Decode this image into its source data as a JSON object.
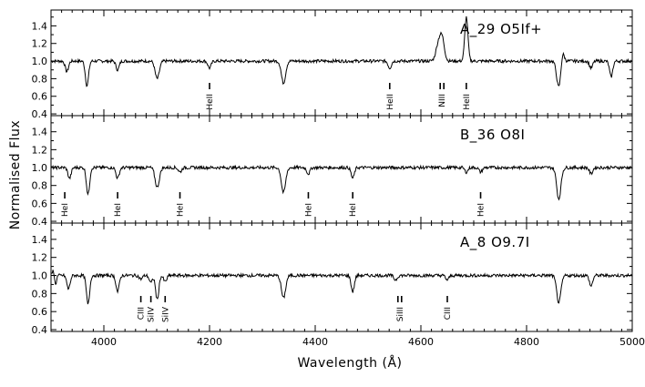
{
  "chart_data": {
    "type": "line",
    "xlabel": "Wavelength (Å)",
    "ylabel": "Normalised Flux",
    "xlim": [
      3900,
      5000
    ],
    "x_ticks": [
      "4000",
      "4200",
      "4400",
      "4600",
      "4800",
      "5000"
    ],
    "y_ticks": [
      "0.4",
      "0.6",
      "0.8",
      "1.0",
      "1.2",
      "1.4"
    ],
    "panels": [
      {
        "label": "A_29  O5If+",
        "ylim": [
          0.38,
          1.58
        ],
        "features": [
          {
            "x": 3930,
            "type": "abs",
            "depth": 0.12,
            "width": 3
          },
          {
            "x": 3968,
            "type": "abs",
            "depth": 0.28,
            "width": 3
          },
          {
            "x": 4026,
            "type": "abs",
            "depth": 0.1,
            "width": 3
          },
          {
            "x": 4101,
            "type": "abs",
            "depth": 0.2,
            "width": 4
          },
          {
            "x": 4200,
            "type": "abs",
            "depth": 0.08,
            "width": 3
          },
          {
            "x": 4340,
            "type": "abs",
            "depth": 0.25,
            "width": 4
          },
          {
            "x": 4541,
            "type": "abs",
            "depth": 0.08,
            "width": 3
          },
          {
            "x": 4634,
            "type": "em",
            "depth": 0.22,
            "width": 5
          },
          {
            "x": 4641,
            "type": "em",
            "depth": 0.2,
            "width": 4
          },
          {
            "x": 4686,
            "type": "em",
            "depth": 0.5,
            "width": 3
          },
          {
            "x": 4861,
            "type": "abs",
            "depth": 0.3,
            "width": 4
          },
          {
            "x": 4868,
            "type": "em",
            "depth": 0.12,
            "width": 3
          },
          {
            "x": 4922,
            "type": "abs",
            "depth": 0.08,
            "width": 3
          },
          {
            "x": 4960,
            "type": "abs",
            "depth": 0.18,
            "width": 3
          }
        ],
        "line_ids": [
          {
            "x": 4200,
            "labels": [
              "HeII"
            ]
          },
          {
            "x": 4541,
            "labels": [
              "HeII"
            ]
          },
          {
            "x": 4640,
            "labels": [
              "NIII"
            ],
            "double": true
          },
          {
            "x": 4686,
            "labels": [
              "HeII"
            ]
          }
        ]
      },
      {
        "label": "B_36  O8I",
        "ylim": [
          0.38,
          1.58
        ],
        "features": [
          {
            "x": 3935,
            "type": "abs",
            "depth": 0.12,
            "width": 3
          },
          {
            "x": 3970,
            "type": "abs",
            "depth": 0.3,
            "width": 3
          },
          {
            "x": 4026,
            "type": "abs",
            "depth": 0.12,
            "width": 3
          },
          {
            "x": 4101,
            "type": "abs",
            "depth": 0.22,
            "width": 4
          },
          {
            "x": 4144,
            "type": "abs",
            "depth": 0.05,
            "width": 3
          },
          {
            "x": 4340,
            "type": "abs",
            "depth": 0.28,
            "width": 4
          },
          {
            "x": 4387,
            "type": "abs",
            "depth": 0.07,
            "width": 3
          },
          {
            "x": 4471,
            "type": "abs",
            "depth": 0.12,
            "width": 3
          },
          {
            "x": 4686,
            "type": "abs",
            "depth": 0.05,
            "width": 3
          },
          {
            "x": 4713,
            "type": "abs",
            "depth": 0.05,
            "width": 3
          },
          {
            "x": 4861,
            "type": "abs",
            "depth": 0.35,
            "width": 4
          },
          {
            "x": 4922,
            "type": "abs",
            "depth": 0.07,
            "width": 3
          }
        ],
        "line_ids": [
          {
            "x": 3926,
            "labels": [
              "HeI"
            ]
          },
          {
            "x": 4026,
            "labels": [
              "HeI"
            ]
          },
          {
            "x": 4144,
            "labels": [
              "HeI"
            ]
          },
          {
            "x": 4387,
            "labels": [
              "HeI"
            ]
          },
          {
            "x": 4471,
            "labels": [
              "HeI"
            ]
          },
          {
            "x": 4713,
            "labels": [
              "HeI"
            ]
          }
        ]
      },
      {
        "label": "A_8  O9.7I",
        "ylim": [
          0.38,
          1.58
        ],
        "features": [
          {
            "x": 3905,
            "type": "em",
            "depth": 0.08,
            "width": 2
          },
          {
            "x": 3908,
            "type": "abs",
            "depth": 0.12,
            "width": 2
          },
          {
            "x": 3933,
            "type": "abs",
            "depth": 0.15,
            "width": 3
          },
          {
            "x": 3970,
            "type": "abs",
            "depth": 0.32,
            "width": 3
          },
          {
            "x": 4026,
            "type": "abs",
            "depth": 0.18,
            "width": 3
          },
          {
            "x": 4070,
            "type": "abs",
            "depth": 0.04,
            "width": 3
          },
          {
            "x": 4089,
            "type": "abs",
            "depth": 0.08,
            "width": 3
          },
          {
            "x": 4101,
            "type": "abs",
            "depth": 0.27,
            "width": 3
          },
          {
            "x": 4116,
            "type": "abs",
            "depth": 0.07,
            "width": 3
          },
          {
            "x": 4340,
            "type": "abs",
            "depth": 0.25,
            "width": 4
          },
          {
            "x": 4471,
            "type": "abs",
            "depth": 0.18,
            "width": 3
          },
          {
            "x": 4552,
            "type": "abs",
            "depth": 0.05,
            "width": 3
          },
          {
            "x": 4650,
            "type": "abs",
            "depth": 0.05,
            "width": 3
          },
          {
            "x": 4861,
            "type": "abs",
            "depth": 0.3,
            "width": 4
          },
          {
            "x": 4922,
            "type": "abs",
            "depth": 0.12,
            "width": 3
          }
        ],
        "line_ids": [
          {
            "x": 4070,
            "labels": [
              "CIII"
            ]
          },
          {
            "x": 4089,
            "labels": [
              "SiIV"
            ]
          },
          {
            "x": 4116,
            "labels": [
              "SiIV"
            ]
          },
          {
            "x": 4560,
            "labels": [
              "SiIII"
            ],
            "double": true
          },
          {
            "x": 4650,
            "labels": [
              "CIII"
            ]
          }
        ]
      }
    ]
  }
}
